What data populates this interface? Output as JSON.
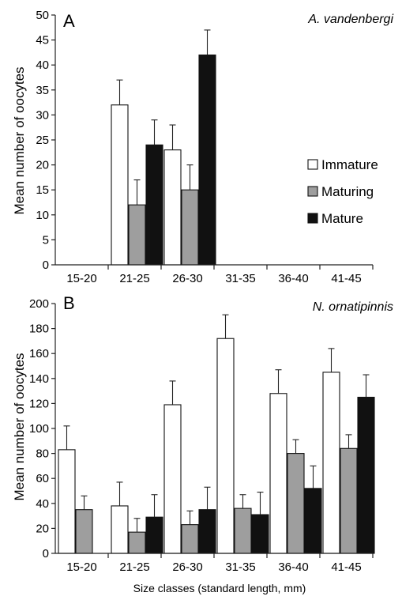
{
  "figure": {
    "xlabel": "Size classes (standard length, mm)",
    "legend": {
      "entries": [
        {
          "name": "Immature",
          "color": "#ffffff"
        },
        {
          "name": "Maturing",
          "color": "#9e9e9e"
        },
        {
          "name": "Mature",
          "color": "#111111"
        }
      ]
    }
  },
  "chart_data": [
    {
      "type": "bar",
      "panel_letter": "A",
      "title": "A. vandenbergi",
      "xlabel": "",
      "ylabel": "Mean number of oocytes",
      "ylim": [
        0,
        50
      ],
      "yticks": [
        "0",
        "5",
        "10",
        "15",
        "20",
        "25",
        "30",
        "35",
        "40",
        "45",
        "50"
      ],
      "categories": [
        "15-20",
        "21-25",
        "26-30",
        "31-35",
        "36-40",
        "41-45"
      ],
      "series": [
        {
          "name": "Immature",
          "color": "#ffffff",
          "values": [
            null,
            32,
            23,
            null,
            null,
            null
          ],
          "errors": [
            null,
            5,
            5,
            null,
            null,
            null
          ]
        },
        {
          "name": "Maturing",
          "color": "#9e9e9e",
          "values": [
            null,
            12,
            15,
            null,
            null,
            null
          ],
          "errors": [
            null,
            5,
            5,
            null,
            null,
            null
          ]
        },
        {
          "name": "Mature",
          "color": "#111111",
          "values": [
            null,
            24,
            42,
            null,
            null,
            null
          ],
          "errors": [
            null,
            5,
            5,
            null,
            null,
            null
          ]
        }
      ],
      "error_bars": "upper",
      "grid": false
    },
    {
      "type": "bar",
      "panel_letter": "B",
      "title": "N. ornatipinnis",
      "xlabel": "Size classes (standard length, mm)",
      "ylabel": "Mean number of oocytes",
      "ylim": [
        0,
        200
      ],
      "yticks": [
        "0",
        "20",
        "40",
        "60",
        "80",
        "100",
        "120",
        "140",
        "160",
        "180",
        "200"
      ],
      "categories": [
        "15-20",
        "21-25",
        "26-30",
        "31-35",
        "36-40",
        "41-45"
      ],
      "series": [
        {
          "name": "Immature",
          "color": "#ffffff",
          "values": [
            83,
            38,
            119,
            172,
            128,
            145
          ],
          "errors": [
            19,
            19,
            19,
            19,
            19,
            19
          ]
        },
        {
          "name": "Maturing",
          "color": "#9e9e9e",
          "values": [
            35,
            17,
            23,
            36,
            80,
            84
          ],
          "errors": [
            11,
            11,
            11,
            11,
            11,
            11
          ]
        },
        {
          "name": "Mature",
          "color": "#111111",
          "values": [
            0,
            29,
            35,
            31,
            52,
            125
          ],
          "errors": [
            null,
            18,
            18,
            18,
            18,
            18
          ]
        }
      ],
      "error_bars": "upper",
      "grid": false
    }
  ]
}
